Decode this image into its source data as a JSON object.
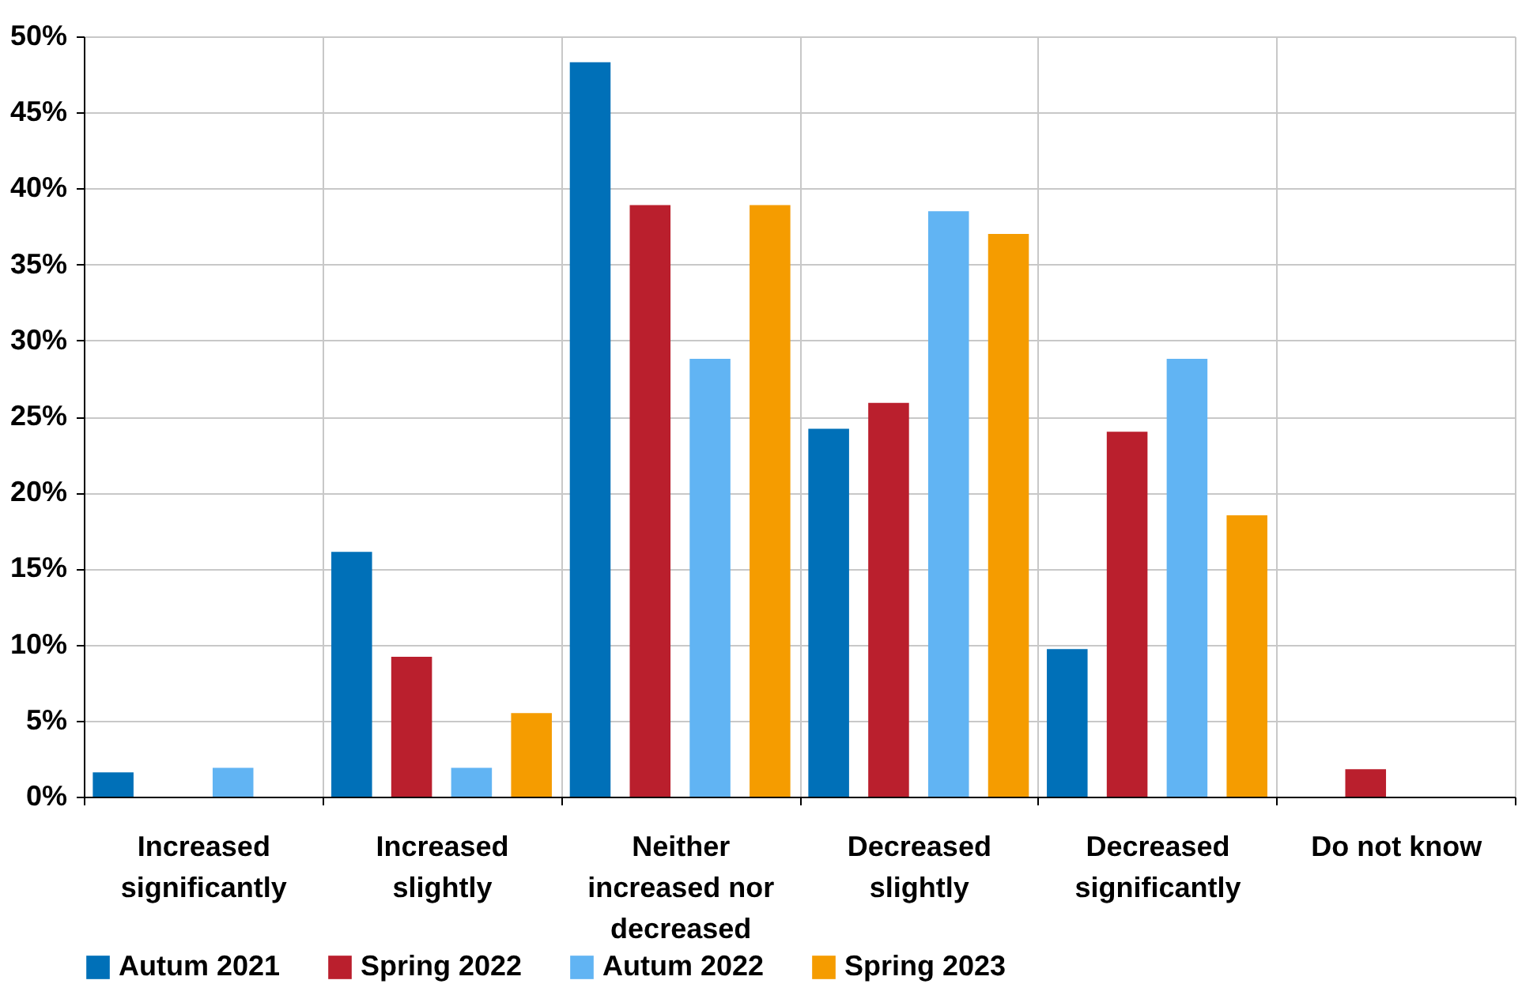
{
  "chart_data": {
    "type": "bar",
    "categories": [
      "Increased significantly",
      "Increased slightly",
      "Neither increased nor decreased",
      "Decreased slightly",
      "Decreased significantly",
      "Do not know"
    ],
    "series": [
      {
        "name": "Autum 2021",
        "color": "#0070b8",
        "values": [
          1.6,
          16.1,
          48.3,
          24.2,
          9.7,
          0
        ]
      },
      {
        "name": "Spring 2022",
        "color": "#ba1f2d",
        "values": [
          0,
          9.2,
          38.9,
          25.9,
          24.0,
          1.8
        ]
      },
      {
        "name": "Autum 2022",
        "color": "#61b4f3",
        "values": [
          1.9,
          1.9,
          28.8,
          38.5,
          28.8,
          0
        ]
      },
      {
        "name": "Spring 2023",
        "color": "#f59c00",
        "values": [
          0,
          5.5,
          38.9,
          37.0,
          18.5,
          0
        ]
      }
    ],
    "ylim": [
      0,
      50
    ],
    "yticks": [
      {
        "value": 0,
        "label": "0%"
      },
      {
        "value": 5,
        "label": "5%"
      },
      {
        "value": 10,
        "label": "10%"
      },
      {
        "value": 15,
        "label": "15%"
      },
      {
        "value": 20,
        "label": "20%"
      },
      {
        "value": 25,
        "label": "25%"
      },
      {
        "value": 30,
        "label": "30%"
      },
      {
        "value": 35,
        "label": "35%"
      },
      {
        "value": 40,
        "label": "40%"
      },
      {
        "value": 45,
        "label": "45%"
      },
      {
        "value": 50,
        "label": "50%"
      }
    ],
    "grid": true,
    "legend": "bottom"
  }
}
